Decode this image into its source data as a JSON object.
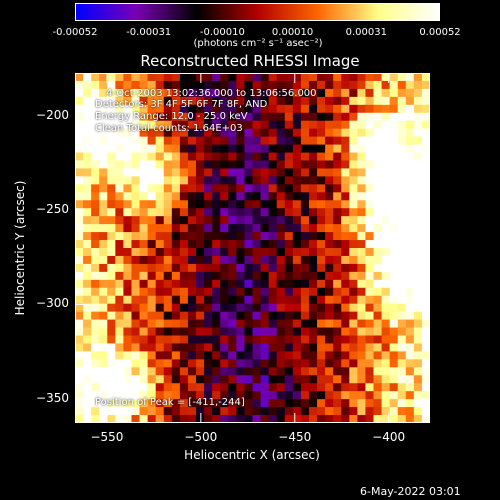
{
  "chart_data": {
    "type": "heatmap",
    "title": "Reconstructed RHESSI Image",
    "xlabel": "Heliocentric X (arcsec)",
    "ylabel": "Heliocentric Y (arcsec)",
    "xlim": [
      -567,
      -378
    ],
    "ylim": [
      -363,
      -177
    ],
    "x_ticks": [
      -550,
      -500,
      -450,
      -400
    ],
    "y_ticks": [
      -200,
      -250,
      -300,
      -350
    ],
    "colorbar": {
      "ticks": [
        -0.00052,
        -0.00031,
        -0.0001,
        0.0001,
        0.00031,
        0.00052
      ],
      "tick_labels": [
        "-0.00052",
        "-0.00031",
        "-0.00010",
        "0.00010",
        "0.00031",
        "0.00052"
      ],
      "units_label": "(photons cm⁻² s⁻¹ asec⁻²)",
      "range": [
        -0.00052,
        0.00052
      ],
      "colors": [
        "#0000ff",
        "#7a00b4",
        "#000000",
        "#b40000",
        "#ff6600",
        "#ffff88",
        "#ffffff"
      ]
    },
    "annotations": {
      "time": "4-Oct-2003 13:02:36.000 to 13:06:56.000",
      "detectors": "Detectors: 3F 4F 5F 6F 7F 8F, AND",
      "energy": "Energy Range: 12.0 - 25.0 keV",
      "clean": "Clean    Total counts: 1.64E+03",
      "peak": "Position of Peak = [-411,-244]"
    },
    "peak_position": [
      -411,
      -244
    ]
  },
  "footer": "6-May-2022 03:01"
}
